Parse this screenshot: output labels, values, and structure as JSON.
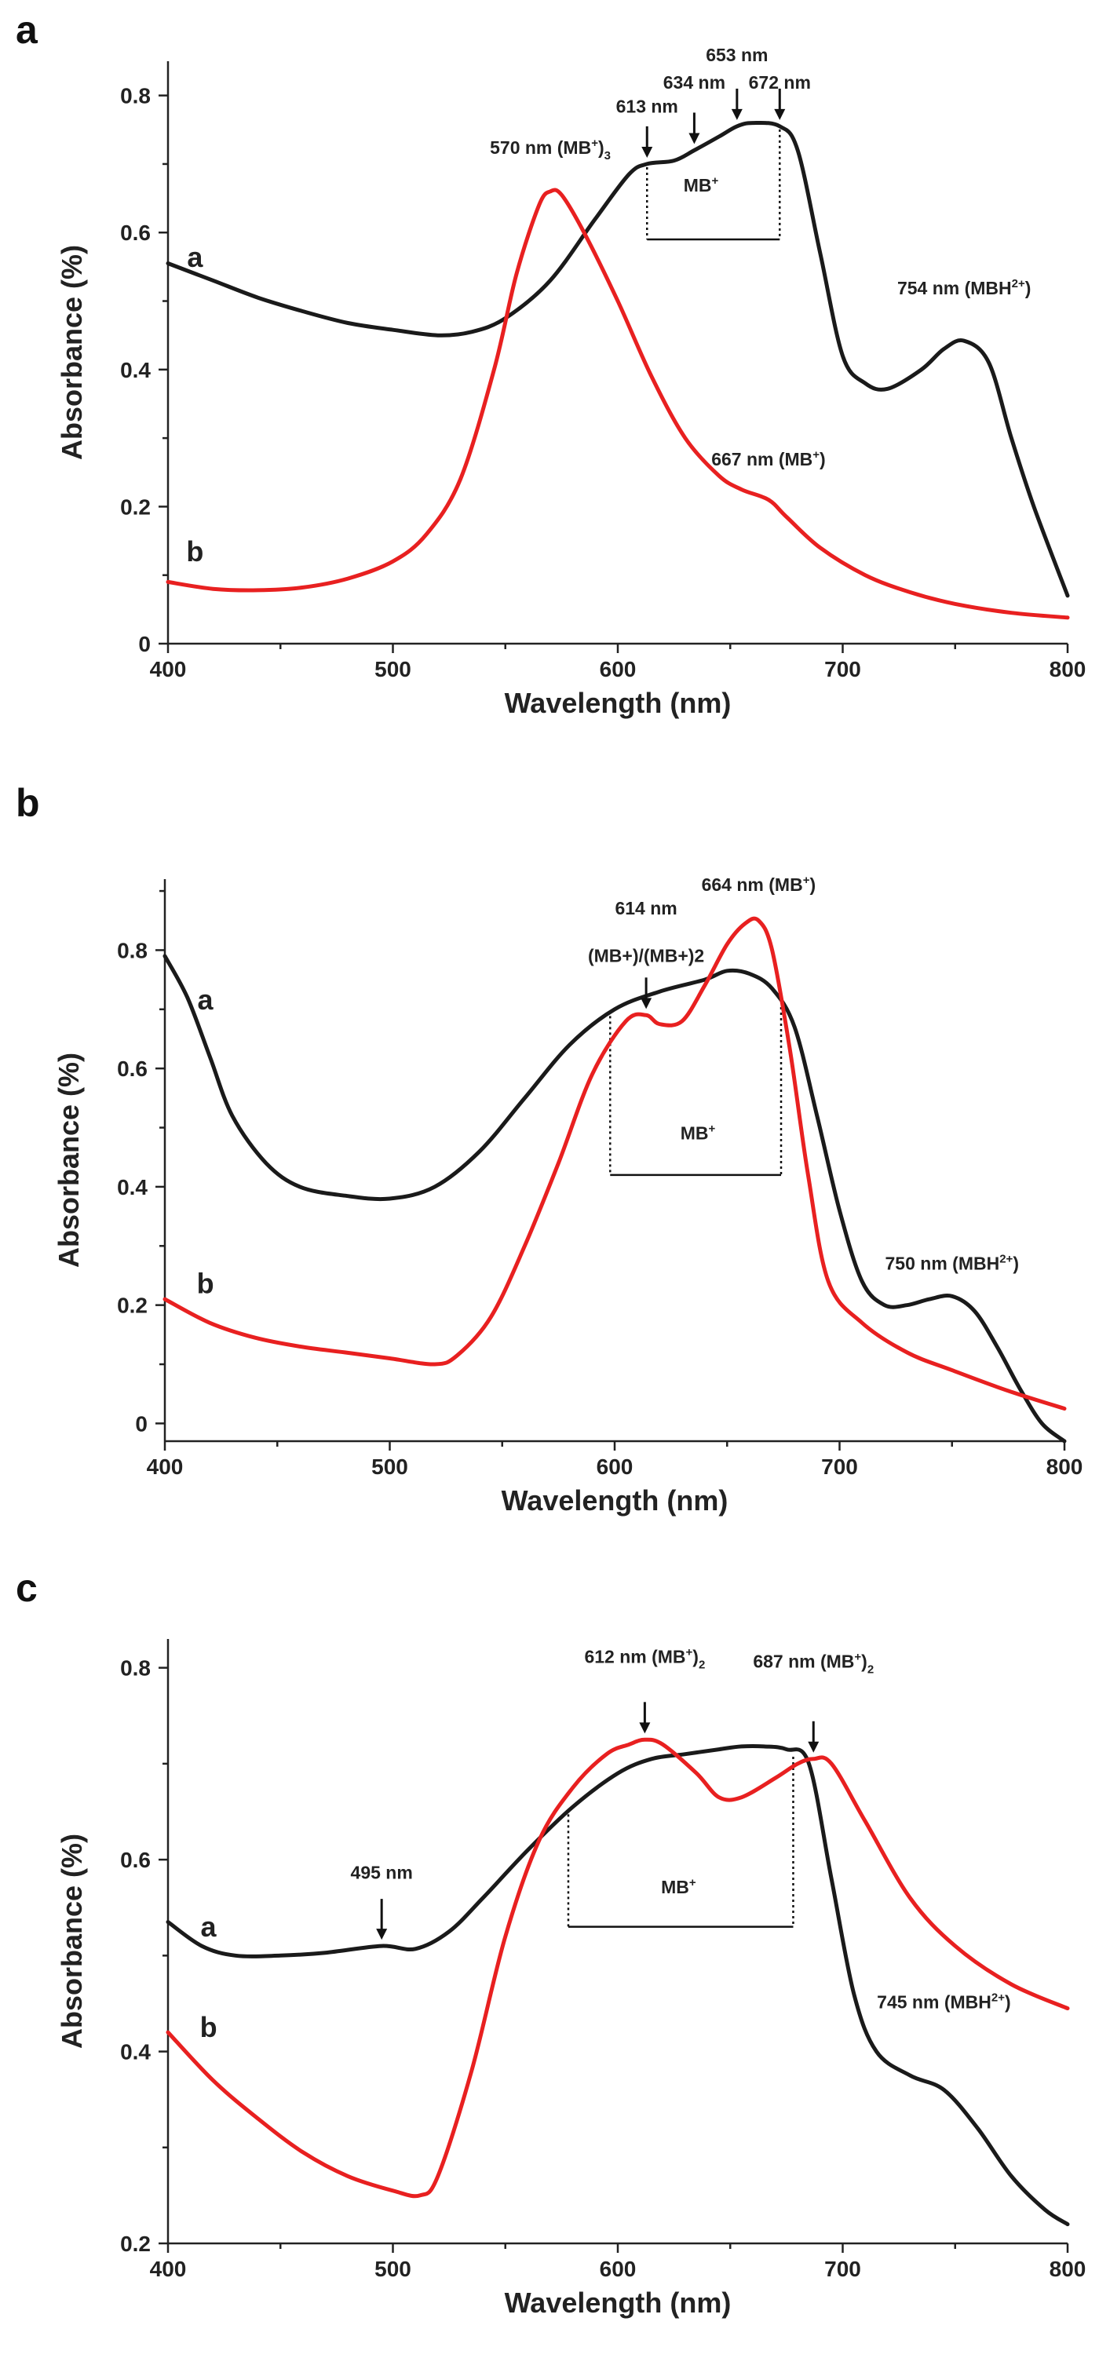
{
  "chart_data": [
    {
      "type": "line",
      "panel": "a",
      "title": "",
      "xlabel": "Wavelength (nm)",
      "ylabel": "Absorbance (%)",
      "xlim": [
        400,
        800
      ],
      "ylim": [
        0,
        0.85
      ],
      "xticks": [
        400,
        500,
        600,
        700,
        800
      ],
      "yticks": [
        0,
        0.2,
        0.4,
        0.6,
        0.8
      ],
      "ytick_labels": [
        "0",
        "0.2",
        "0.4",
        "0.6",
        "0.8"
      ],
      "grid": false,
      "series": [
        {
          "name": "a",
          "color": "#1a1a1a",
          "x": [
            400,
            420,
            440,
            460,
            480,
            500,
            520,
            535,
            550,
            570,
            590,
            605,
            613,
            625,
            634,
            645,
            653,
            660,
            672,
            680,
            690,
            700,
            710,
            720,
            735,
            745,
            754,
            765,
            775,
            785,
            800
          ],
          "y": [
            0.555,
            0.53,
            0.505,
            0.485,
            0.468,
            0.458,
            0.45,
            0.455,
            0.475,
            0.53,
            0.62,
            0.685,
            0.7,
            0.705,
            0.72,
            0.74,
            0.755,
            0.76,
            0.755,
            0.72,
            0.57,
            0.42,
            0.38,
            0.372,
            0.4,
            0.43,
            0.442,
            0.41,
            0.3,
            0.2,
            0.07
          ]
        },
        {
          "name": "b",
          "color": "#e82020",
          "x": [
            400,
            420,
            440,
            460,
            480,
            500,
            515,
            530,
            545,
            555,
            565,
            570,
            575,
            585,
            600,
            615,
            630,
            645,
            655,
            667,
            675,
            690,
            710,
            730,
            750,
            775,
            800
          ],
          "y": [
            0.09,
            0.08,
            0.078,
            0.082,
            0.095,
            0.12,
            0.16,
            0.24,
            0.4,
            0.54,
            0.64,
            0.66,
            0.655,
            0.6,
            0.5,
            0.39,
            0.3,
            0.245,
            0.225,
            0.21,
            0.185,
            0.14,
            0.1,
            0.075,
            0.058,
            0.045,
            0.038
          ]
        }
      ],
      "curve_labels": [
        {
          "text": "a",
          "x": 412,
          "y": 0.55
        },
        {
          "text": "b",
          "x": 412,
          "y": 0.12
        }
      ],
      "annotations": [
        {
          "text": "653 nm",
          "x": 653,
          "y": 0.85
        },
        {
          "text": "634 nm",
          "x": 634,
          "y": 0.81
        },
        {
          "text": "672 nm",
          "x": 672,
          "y": 0.81
        },
        {
          "text": "613 nm",
          "x": 613,
          "y": 0.775
        },
        {
          "text": "570 nm (MB",
          "sup": "+",
          "suffix": ")",
          "sub": "3",
          "x": 570,
          "y": 0.715
        },
        {
          "text": "MB",
          "sup": "+",
          "x": 637,
          "y": 0.66
        },
        {
          "text": "754 nm (MBH",
          "sup": "2+",
          "suffix": ")",
          "x": 754,
          "y": 0.51
        },
        {
          "text": "667 nm (MB",
          "sup": "+",
          "suffix": ")",
          "x": 667,
          "y": 0.26
        }
      ],
      "arrows": [
        613,
        634,
        653,
        672
      ],
      "bracket": {
        "x1": 613,
        "x2": 672,
        "label": "MB+"
      }
    },
    {
      "type": "line",
      "panel": "b",
      "title": "",
      "xlabel": "Wavelength (nm)",
      "ylabel": "Absorbance (%)",
      "xlim": [
        400,
        800
      ],
      "ylim": [
        -0.03,
        0.92
      ],
      "xticks": [
        400,
        500,
        600,
        700,
        800
      ],
      "yticks": [
        0,
        0.2,
        0.4,
        0.6,
        0.8
      ],
      "ytick_labels": [
        "0",
        "0.2",
        "0.4",
        "0.6",
        "0.8"
      ],
      "grid": false,
      "series": [
        {
          "name": "a",
          "color": "#1a1a1a",
          "x": [
            400,
            410,
            420,
            430,
            445,
            460,
            480,
            500,
            520,
            540,
            560,
            580,
            600,
            620,
            640,
            650,
            660,
            670,
            680,
            690,
            700,
            710,
            720,
            730,
            740,
            750,
            760,
            770,
            780,
            790,
            800
          ],
          "y": [
            0.79,
            0.72,
            0.62,
            0.52,
            0.44,
            0.4,
            0.385,
            0.38,
            0.4,
            0.46,
            0.55,
            0.64,
            0.7,
            0.73,
            0.75,
            0.765,
            0.76,
            0.735,
            0.67,
            0.52,
            0.36,
            0.24,
            0.2,
            0.2,
            0.21,
            0.215,
            0.19,
            0.13,
            0.06,
            0.0,
            -0.03
          ]
        },
        {
          "name": "b",
          "color": "#e82020",
          "x": [
            400,
            420,
            440,
            460,
            480,
            500,
            520,
            530,
            545,
            560,
            575,
            590,
            605,
            614,
            620,
            630,
            640,
            650,
            658,
            664,
            670,
            678,
            686,
            695,
            710,
            730,
            750,
            775,
            800
          ],
          "y": [
            0.21,
            0.17,
            0.145,
            0.13,
            0.12,
            0.11,
            0.1,
            0.115,
            0.18,
            0.3,
            0.44,
            0.59,
            0.68,
            0.69,
            0.675,
            0.68,
            0.74,
            0.81,
            0.845,
            0.85,
            0.8,
            0.63,
            0.42,
            0.24,
            0.17,
            0.12,
            0.09,
            0.055,
            0.025
          ]
        }
      ],
      "curve_labels": [
        {
          "text": "a",
          "x": 418,
          "y": 0.7
        },
        {
          "text": "b",
          "x": 418,
          "y": 0.22
        }
      ],
      "annotations": [
        {
          "text": "614 nm",
          "x": 614,
          "y": 0.86
        },
        {
          "text": "(MB+)/(MB+)2",
          "x": 614,
          "y": 0.78
        },
        {
          "text": "664 nm (MB",
          "sup": "+",
          "suffix": ")",
          "x": 664,
          "y": 0.9
        },
        {
          "text": "MB",
          "sup": "+",
          "x": 637,
          "y": 0.48
        },
        {
          "text": "750 nm (MBH",
          "sup": "2+",
          "suffix": ")",
          "x": 750,
          "y": 0.26
        }
      ],
      "arrows": [
        614
      ],
      "bracket": {
        "x1": 598,
        "x2": 674,
        "label": "MB+"
      }
    },
    {
      "type": "line",
      "panel": "c",
      "title": "",
      "xlabel": "Wavelength (nm)",
      "ylabel": "Absorbance (%)",
      "xlim": [
        400,
        800
      ],
      "ylim": [
        0.2,
        0.83
      ],
      "xticks": [
        400,
        500,
        600,
        700,
        800
      ],
      "yticks": [
        0.2,
        0.4,
        0.6,
        0.8
      ],
      "ytick_labels": [
        "0.2",
        "0.4",
        "0.6",
        "0.8"
      ],
      "grid": false,
      "series": [
        {
          "name": "a",
          "color": "#1a1a1a",
          "x": [
            400,
            415,
            430,
            450,
            470,
            495,
            510,
            525,
            540,
            560,
            580,
            600,
            615,
            630,
            645,
            655,
            665,
            675,
            685,
            695,
            705,
            715,
            730,
            745,
            760,
            775,
            790,
            800
          ],
          "y": [
            0.535,
            0.51,
            0.5,
            0.5,
            0.503,
            0.51,
            0.507,
            0.525,
            0.56,
            0.61,
            0.655,
            0.69,
            0.705,
            0.71,
            0.715,
            0.718,
            0.718,
            0.715,
            0.7,
            0.58,
            0.46,
            0.4,
            0.375,
            0.36,
            0.32,
            0.27,
            0.235,
            0.22
          ]
        },
        {
          "name": "b",
          "color": "#e82020",
          "x": [
            400,
            420,
            440,
            460,
            480,
            500,
            512,
            520,
            535,
            550,
            565,
            580,
            595,
            605,
            612,
            620,
            635,
            645,
            655,
            670,
            680,
            687,
            695,
            710,
            730,
            750,
            775,
            800
          ],
          "y": [
            0.42,
            0.37,
            0.33,
            0.295,
            0.27,
            0.255,
            0.25,
            0.27,
            0.38,
            0.52,
            0.62,
            0.675,
            0.71,
            0.72,
            0.725,
            0.72,
            0.69,
            0.665,
            0.665,
            0.685,
            0.7,
            0.705,
            0.7,
            0.64,
            0.56,
            0.51,
            0.47,
            0.445
          ]
        }
      ],
      "curve_labels": [
        {
          "text": "a",
          "x": 418,
          "y": 0.52
        },
        {
          "text": "b",
          "x": 418,
          "y": 0.415
        }
      ],
      "annotations": [
        {
          "text": "612 nm (MB",
          "sup": "+",
          "suffix": ")",
          "sub": "2",
          "x": 612,
          "y": 0.805
        },
        {
          "text": "687 nm (MB",
          "sup": "+",
          "suffix": ")",
          "sub": "2",
          "x": 687,
          "y": 0.8
        },
        {
          "text": "495 nm",
          "x": 495,
          "y": 0.58
        },
        {
          "text": "MB",
          "sup": "+",
          "x": 627,
          "y": 0.565
        },
        {
          "text": "745 nm (MBH",
          "sup": "2+",
          "suffix": ")",
          "x": 745,
          "y": 0.445
        }
      ],
      "arrows": [
        612,
        687,
        495
      ],
      "bracket": {
        "x1": 578,
        "x2": 678,
        "label": "MB+"
      }
    }
  ]
}
